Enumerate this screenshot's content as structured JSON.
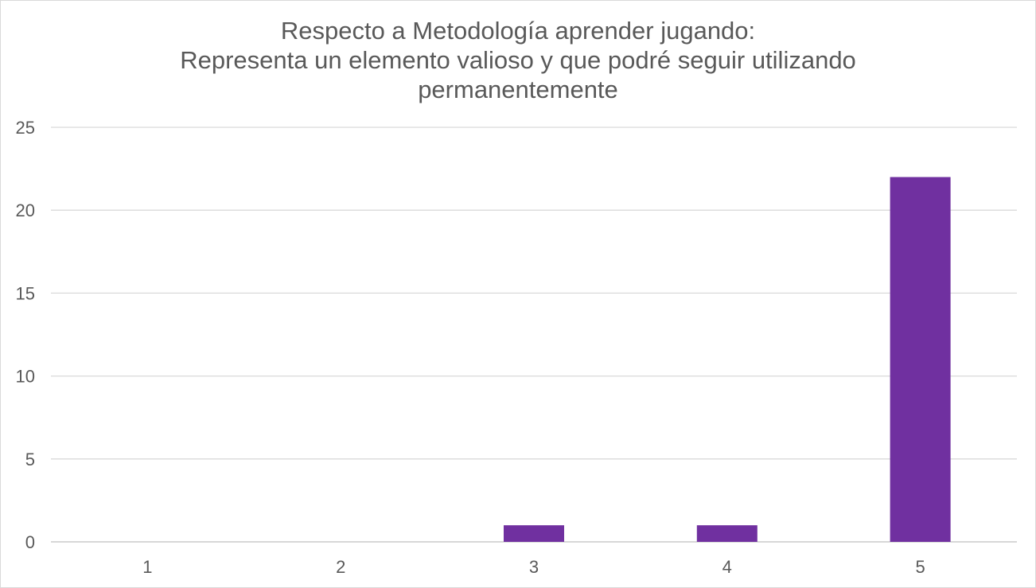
{
  "chart_data": {
    "type": "bar",
    "title_lines": [
      "Respecto a Metodología  aprender jugando:",
      "Representa un elemento valioso y que podré seguir utilizando",
      "permanentemente"
    ],
    "title": "Respecto a Metodología  aprender jugando: Representa un elemento valioso y que podré seguir utilizando permanentemente",
    "categories": [
      "1",
      "2",
      "3",
      "4",
      "5"
    ],
    "values": [
      0,
      0,
      1,
      1,
      22
    ],
    "ylim": [
      0,
      25
    ],
    "yticks": [
      0,
      5,
      10,
      15,
      20,
      25
    ],
    "grid": true,
    "bar_color": "#7030a0",
    "xlabel": "",
    "ylabel": ""
  }
}
